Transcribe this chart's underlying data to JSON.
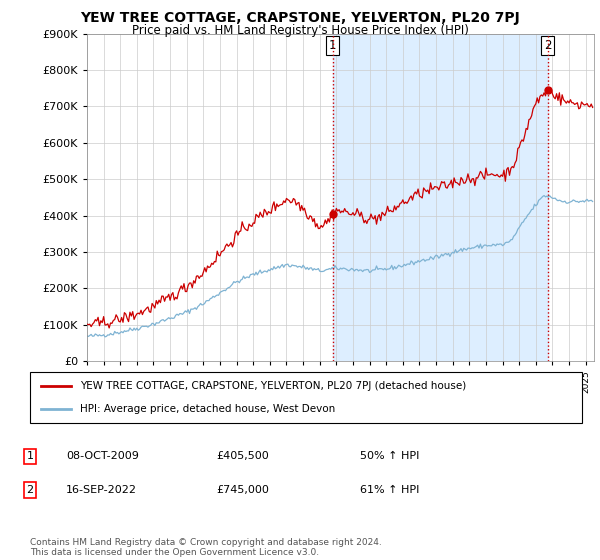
{
  "title": "YEW TREE COTTAGE, CRAPSTONE, YELVERTON, PL20 7PJ",
  "subtitle": "Price paid vs. HM Land Registry's House Price Index (HPI)",
  "legend_line1": "YEW TREE COTTAGE, CRAPSTONE, YELVERTON, PL20 7PJ (detached house)",
  "legend_line2": "HPI: Average price, detached house, West Devon",
  "sale1_date": "08-OCT-2009",
  "sale1_price": "£405,500",
  "sale1_hpi": "50% ↑ HPI",
  "sale2_date": "16-SEP-2022",
  "sale2_price": "£745,000",
  "sale2_hpi": "61% ↑ HPI",
  "footnote": "Contains HM Land Registry data © Crown copyright and database right 2024.\nThis data is licensed under the Open Government Licence v3.0.",
  "red_color": "#cc0000",
  "blue_color": "#7fb3d3",
  "shade_color": "#ddeeff",
  "ylim": [
    0,
    900000
  ],
  "yticks": [
    0,
    100000,
    200000,
    300000,
    400000,
    500000,
    600000,
    700000,
    800000,
    900000
  ],
  "xlim_start": 1995.0,
  "xlim_end": 2025.5,
  "sale1_x": 2009.77,
  "sale1_y": 405500,
  "sale2_x": 2022.71,
  "sale2_y": 745000
}
